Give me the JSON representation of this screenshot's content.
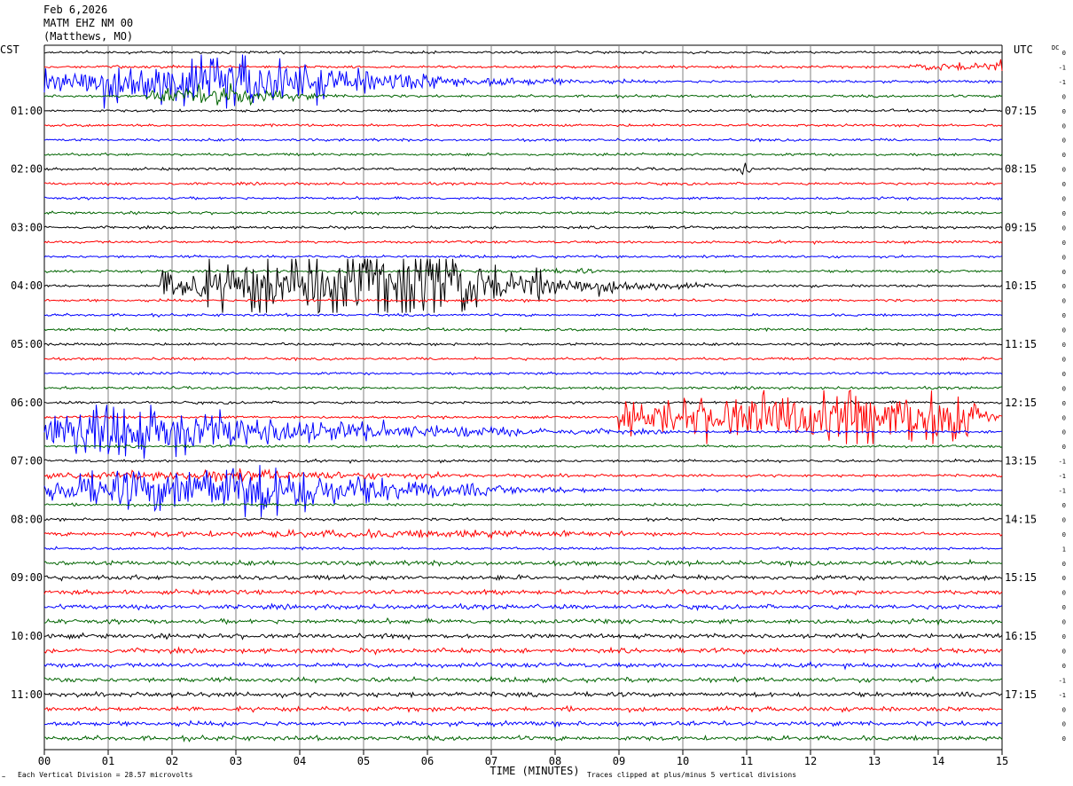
{
  "header": {
    "date": "Feb 6,2026",
    "station": "MATM EHZ NM 00",
    "location": "(Matthews, MO)"
  },
  "labels": {
    "left_tz": "CST",
    "right_tz": "UTC",
    "dc_label": "DC",
    "xlabel": "TIME (MINUTES)",
    "footer_left": "Each Vertical Division =   28.57 microvolts",
    "footer_right": "Traces clipped at plus/minus 5 vertical divisions",
    "corner_mark": "~"
  },
  "colors": {
    "black": "#000000",
    "red": "#ff0000",
    "blue": "#0000ff",
    "green": "#006400",
    "grid": "#808080"
  },
  "chart_data": {
    "type": "line",
    "title": "MATM EHZ NM 00 (Matthews, MO)",
    "xlabel": "TIME (MINUTES)",
    "x_ticks": [
      "00",
      "01",
      "02",
      "03",
      "04",
      "05",
      "06",
      "07",
      "08",
      "09",
      "10",
      "11",
      "12",
      "13",
      "14",
      "15"
    ],
    "xlim": [
      0,
      15
    ],
    "left_hour_labels": [
      "01:00",
      "02:00",
      "03:00",
      "04:00",
      "05:00",
      "06:00",
      "07:00",
      "08:00",
      "09:00",
      "10:00",
      "11:00"
    ],
    "right_hour_labels": [
      "07:15",
      "08:15",
      "09:15",
      "10:15",
      "11:15",
      "12:15",
      "13:15",
      "14:15",
      "15:15",
      "16:15",
      "17:15"
    ],
    "trace_colors": [
      "black",
      "red",
      "blue",
      "green"
    ],
    "trace_count": 48,
    "minutes_per_trace": 15,
    "units": "microvolts",
    "microvolts_per_division": 28.57,
    "clip_divisions": 5,
    "dc_offsets": [
      "0",
      "-1",
      "-1",
      "0",
      "0",
      "0",
      "0",
      "0",
      "0",
      "0",
      "0",
      "0",
      "0",
      "0",
      "0",
      "0",
      "0",
      "0",
      "0",
      "0",
      "0",
      "0",
      "0",
      "0",
      "0",
      "0",
      "0",
      "0",
      "-1",
      "-1",
      "-1",
      "0",
      "0",
      "0",
      "1",
      "0",
      "0",
      "0",
      "0",
      "0",
      "0",
      "0",
      "0",
      "-1",
      "-1",
      "0",
      "0",
      "0"
    ],
    "events": [
      {
        "trace": 2,
        "start": 0.0,
        "peak": 3.2,
        "end": 9.5,
        "amp": 6,
        "clip": true
      },
      {
        "trace": 3,
        "start": 1.6,
        "peak": 3.0,
        "end": 5.4,
        "amp": 2.5,
        "clip": false
      },
      {
        "trace": 1,
        "start": 13.5,
        "peak": 15.0,
        "end": 15.0,
        "amp": 1.2,
        "clip": false
      },
      {
        "trace": 8,
        "start": 10.8,
        "peak": 11.0,
        "end": 11.2,
        "amp": 1.5,
        "clip": false
      },
      {
        "trace": 16,
        "start": 1.8,
        "peak": 6.0,
        "end": 10.5,
        "amp": 9,
        "clip": true
      },
      {
        "trace": 15,
        "start": 7.5,
        "peak": 8.5,
        "end": 9.0,
        "amp": 0.6,
        "clip": false
      },
      {
        "trace": 25,
        "start": 9.0,
        "peak": 14.5,
        "end": 15.0,
        "amp": 7,
        "clip": true
      },
      {
        "trace": 26,
        "start": 0.0,
        "peak": 1.0,
        "end": 10.0,
        "amp": 7,
        "clip": true
      },
      {
        "trace": 29,
        "start": 0.0,
        "peak": 3.0,
        "end": 15.0,
        "amp": 1.2,
        "clip": false
      },
      {
        "trace": 30,
        "start": 0.0,
        "peak": 3.5,
        "end": 9.5,
        "amp": 6,
        "clip": true
      },
      {
        "trace": 33,
        "start": 0.0,
        "peak": 7.0,
        "end": 15.0,
        "amp": 0.9,
        "clip": false
      }
    ]
  }
}
